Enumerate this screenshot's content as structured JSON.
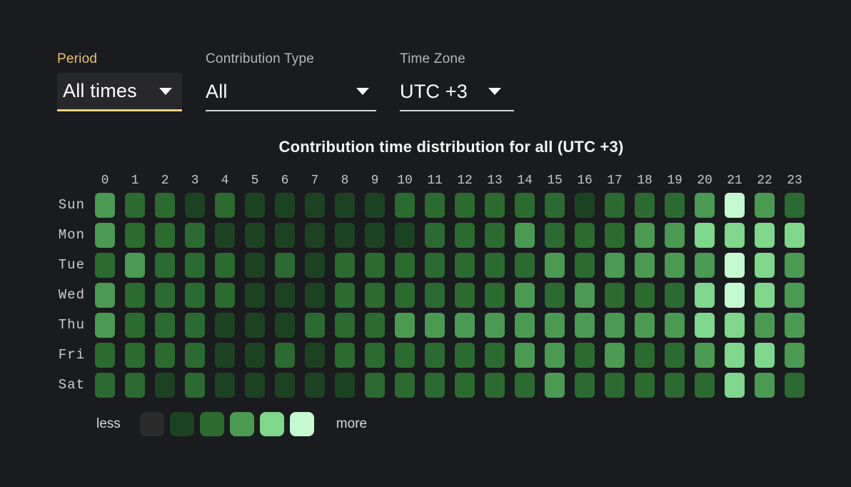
{
  "filters": {
    "period": {
      "label": "Period",
      "value": "All times"
    },
    "contribution_type": {
      "label": "Contribution Type",
      "value": "All"
    },
    "time_zone": {
      "label": "Time Zone",
      "value": "UTC +3"
    }
  },
  "chart_data": {
    "type": "heatmap",
    "title": "Contribution time distribution for all (UTC +3)",
    "hours": [
      "0",
      "1",
      "2",
      "3",
      "4",
      "5",
      "6",
      "7",
      "8",
      "9",
      "10",
      "11",
      "12",
      "13",
      "14",
      "15",
      "16",
      "17",
      "18",
      "19",
      "20",
      "21",
      "22",
      "23"
    ],
    "days": [
      "Sun",
      "Mon",
      "Tue",
      "Wed",
      "Thu",
      "Fri",
      "Sat"
    ],
    "palette": [
      "#2b2b2b",
      "#1c4321",
      "#2c6b2f",
      "#4a9a52",
      "#7fd78b",
      "#c5f9cf"
    ],
    "level_range": [
      0,
      5
    ],
    "rows": [
      {
        "day": "Sun",
        "levels": [
          3,
          2,
          2,
          1,
          2,
          1,
          1,
          1,
          1,
          1,
          2,
          2,
          2,
          2,
          2,
          2,
          1,
          2,
          2,
          2,
          3,
          5,
          3,
          2
        ]
      },
      {
        "day": "Mon",
        "levels": [
          3,
          2,
          2,
          2,
          1,
          1,
          1,
          1,
          1,
          1,
          1,
          2,
          2,
          2,
          3,
          2,
          2,
          2,
          3,
          3,
          4,
          4,
          4,
          4
        ]
      },
      {
        "day": "Tue",
        "levels": [
          2,
          3,
          2,
          2,
          2,
          1,
          2,
          1,
          2,
          2,
          2,
          2,
          2,
          2,
          2,
          3,
          2,
          3,
          3,
          3,
          3,
          5,
          4,
          3
        ]
      },
      {
        "day": "Wed",
        "levels": [
          3,
          2,
          2,
          2,
          2,
          1,
          1,
          1,
          2,
          2,
          2,
          2,
          2,
          2,
          3,
          2,
          3,
          2,
          2,
          2,
          4,
          5,
          4,
          3
        ]
      },
      {
        "day": "Thu",
        "levels": [
          3,
          2,
          2,
          2,
          1,
          1,
          1,
          2,
          2,
          2,
          3,
          3,
          3,
          3,
          3,
          3,
          3,
          3,
          3,
          3,
          4,
          4,
          3,
          3
        ]
      },
      {
        "day": "Fri",
        "levels": [
          2,
          2,
          2,
          2,
          1,
          1,
          2,
          1,
          2,
          2,
          2,
          2,
          2,
          2,
          3,
          3,
          2,
          3,
          2,
          2,
          3,
          4,
          4,
          3
        ]
      },
      {
        "day": "Sat",
        "levels": [
          2,
          2,
          1,
          2,
          1,
          1,
          1,
          1,
          1,
          2,
          2,
          2,
          2,
          2,
          2,
          3,
          2,
          2,
          2,
          2,
          2,
          4,
          3,
          2
        ]
      }
    ],
    "legend": {
      "less": "less",
      "more": "more"
    },
    "legend_position": "bottom-left"
  },
  "colors": {
    "background": "#1a1b1e",
    "accent_gold": "#f2d277",
    "label_gray": "#b3b6b8",
    "title_white": "#f4f4f4"
  }
}
